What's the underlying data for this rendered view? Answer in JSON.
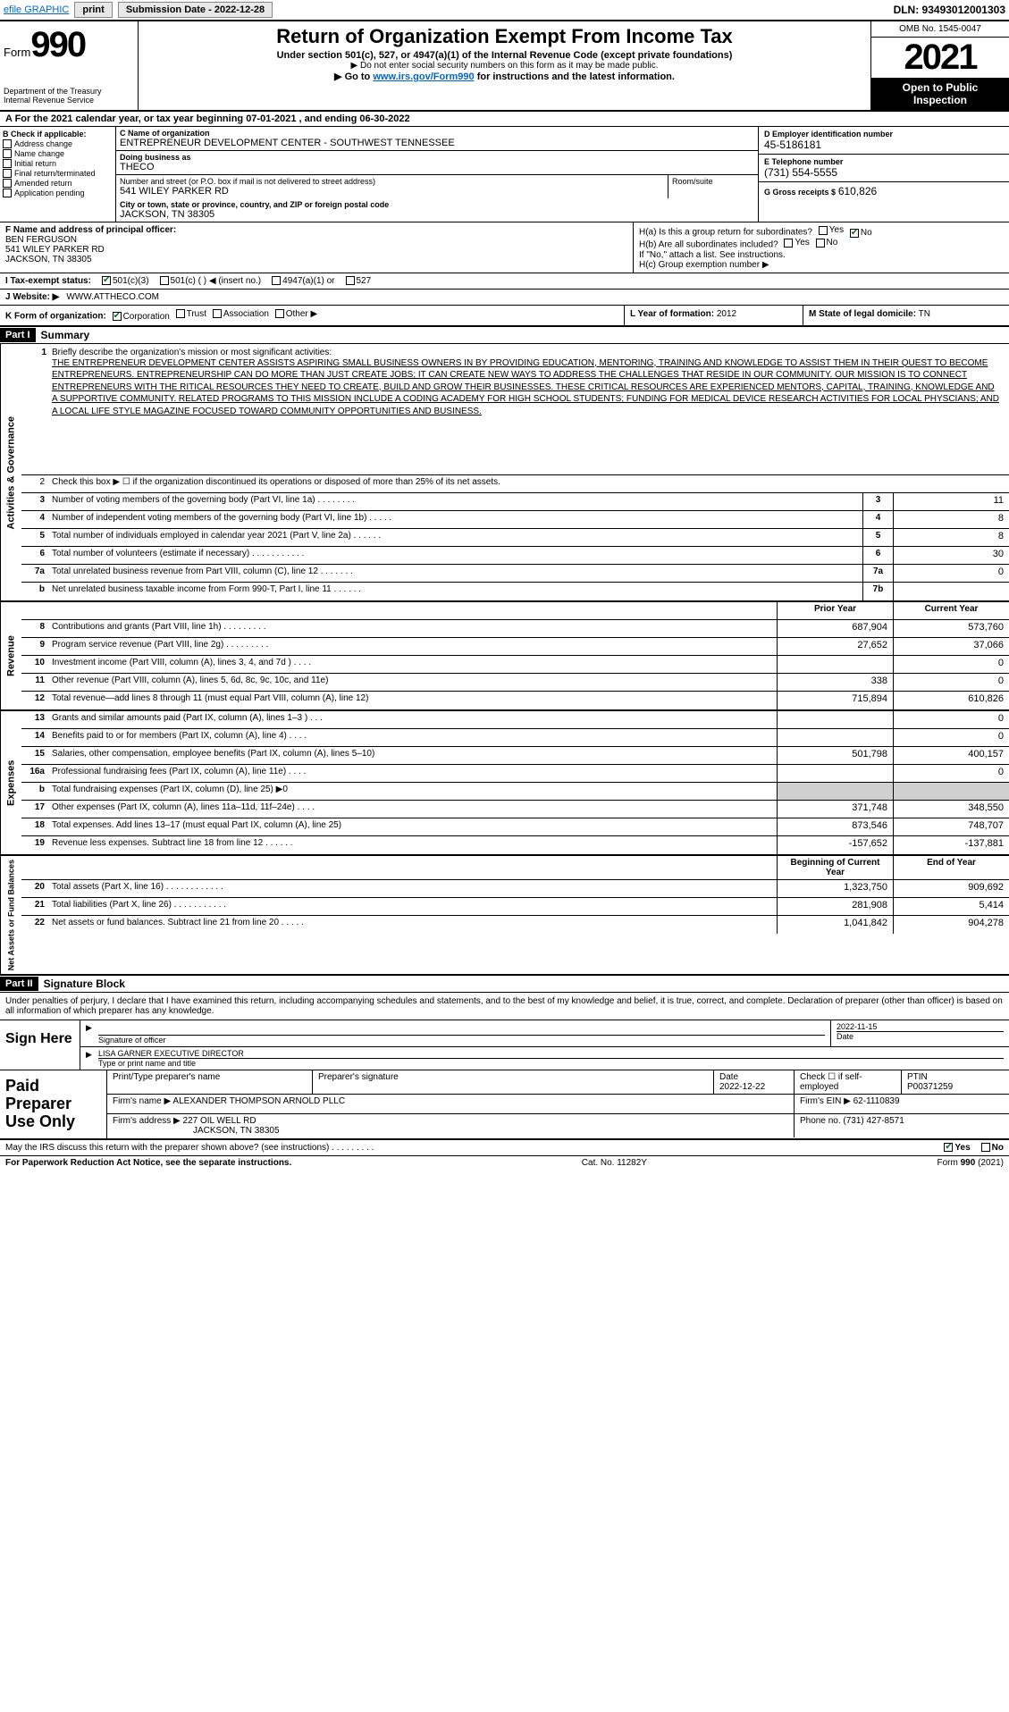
{
  "topbar": {
    "efile": "efile GRAPHIC",
    "print": "print",
    "submission_label": "Submission Date - 2022-12-28",
    "dln": "DLN: 93493012001303"
  },
  "header": {
    "form_word": "Form",
    "form_num": "990",
    "dept": "Department of the Treasury",
    "irs": "Internal Revenue Service",
    "title": "Return of Organization Exempt From Income Tax",
    "sub1": "Under section 501(c), 527, or 4947(a)(1) of the Internal Revenue Code (except private foundations)",
    "sub2": "▶ Do not enter social security numbers on this form as it may be made public.",
    "sub3_pre": "▶ Go to ",
    "sub3_link": "www.irs.gov/Form990",
    "sub3_post": " for instructions and the latest information.",
    "omb": "OMB No. 1545-0047",
    "year": "2021",
    "open": "Open to Public Inspection"
  },
  "line_a": "A For the 2021 calendar year, or tax year beginning 07-01-2021   , and ending 06-30-2022",
  "box_b": {
    "title": "B Check if applicable:",
    "items": [
      "Address change",
      "Name change",
      "Initial return",
      "Final return/terminated",
      "Amended return",
      "Application pending"
    ]
  },
  "box_c": {
    "name_lbl": "C Name of organization",
    "name": "ENTREPRENEUR DEVELOPMENT CENTER - SOUTHWEST TENNESSEE",
    "dba_lbl": "Doing business as",
    "dba": "THECO",
    "addr_lbl": "Number and street (or P.O. box if mail is not delivered to street address)",
    "addr": "541 WILEY PARKER RD",
    "room_lbl": "Room/suite",
    "city_lbl": "City or town, state or province, country, and ZIP or foreign postal code",
    "city": "JACKSON, TN  38305"
  },
  "box_d": {
    "lbl": "D Employer identification number",
    "val": "45-5186181"
  },
  "box_e": {
    "lbl": "E Telephone number",
    "val": "(731) 554-5555"
  },
  "box_g": {
    "lbl": "G Gross receipts $",
    "val": "610,826"
  },
  "box_f": {
    "lbl": "F  Name and address of principal officer:",
    "name": "BEN FERGUSON",
    "addr1": "541 WILEY PARKER RD",
    "addr2": "JACKSON, TN  38305"
  },
  "box_h": {
    "a": "H(a)  Is this a group return for subordinates?",
    "b": "H(b)  Are all subordinates included?",
    "b2": "If \"No,\" attach a list. See instructions.",
    "c": "H(c)  Group exemption number ▶",
    "yes": "Yes",
    "no": "No"
  },
  "row_i": {
    "lbl": "I   Tax-exempt status:",
    "o1": "501(c)(3)",
    "o2": "501(c) (  ) ◀ (insert no.)",
    "o3": "4947(a)(1) or",
    "o4": "527"
  },
  "row_j": {
    "lbl": "J   Website: ▶",
    "val": "WWW.ATTHECO.COM"
  },
  "row_k": {
    "lbl": "K Form of organization:",
    "o1": "Corporation",
    "o2": "Trust",
    "o3": "Association",
    "o4": "Other ▶",
    "l_lbl": "L Year of formation:",
    "l_val": "2012",
    "m_lbl": "M State of legal domicile:",
    "m_val": "TN"
  },
  "part1": {
    "tag": "Part I",
    "title": "Summary"
  },
  "mission": {
    "num": "1",
    "lead": "Briefly describe the organization's mission or most significant activities:",
    "text": "THE ENTREPRENEUR DEVELOPMENT CENTER ASSISTS ASPIRING SMALL BUSINESS OWNERS IN BY PROVIDING EDUCATION, MENTORING, TRAINING AND KNOWLEDGE TO ASSIST THEM IN THEIR QUEST TO BECOME ENTREPRENEURS. ENTREPRENEURSHIP CAN DO MORE THAN JUST CREATE JOBS; IT CAN CREATE NEW WAYS TO ADDRESS THE CHALLENGES THAT RESIDE IN OUR COMMUNITY. OUR MISSION IS TO CONNECT ENTREPRENEURS WITH THE RITICAL RESOURCES THEY NEED TO CREATE, BUILD AND GROW THEIR BUSINESSES. THESE CRITICAL RESOURCES ARE EXPERIENCED MENTORS, CAPITAL, TRAINING, KNOWLEDGE AND A SUPPORTIVE COMMUNITY. RELATED PROGRAMS TO THIS MISSION INCLUDE A CODING ACADEMY FOR HIGH SCHOOL STUDENTS; FUNDING FOR MEDICAL DEVICE RESEARCH ACTIVITIES FOR LOCAL PHYSCIANS; AND A LOCAL LIFE STYLE MAGAZINE FOCUSED TOWARD COMMUNITY OPPORTUNITIES AND BUSINESS."
  },
  "side_labels": {
    "ag": "Activities & Governance",
    "rev": "Revenue",
    "exp": "Expenses",
    "na": "Net Assets or Fund Balances"
  },
  "ag_rows": [
    {
      "n": "2",
      "d": "Check this box ▶ ☐ if the organization discontinued its operations or disposed of more than 25% of its net assets."
    },
    {
      "n": "3",
      "d": "Number of voting members of the governing body (Part VI, line 1a)   .    .    .    .    .    .    .    .",
      "box": "3",
      "v": "11"
    },
    {
      "n": "4",
      "d": "Number of independent voting members of the governing body (Part VI, line 1b)   .    .    .    .    .",
      "box": "4",
      "v": "8"
    },
    {
      "n": "5",
      "d": "Total number of individuals employed in calendar year 2021 (Part V, line 2a)   .    .    .    .    .    .",
      "box": "5",
      "v": "8"
    },
    {
      "n": "6",
      "d": "Total number of volunteers (estimate if necessary)   .    .    .    .    .    .    .    .    .    .    .",
      "box": "6",
      "v": "30"
    },
    {
      "n": "7a",
      "d": "Total unrelated business revenue from Part VIII, column (C), line 12   .    .    .    .    .    .    .",
      "box": "7a",
      "v": "0"
    },
    {
      "n": "b",
      "d": "Net unrelated business taxable income from Form 990-T, Part I, line 11   .    .    .    .    .    .",
      "box": "7b",
      "v": ""
    }
  ],
  "col_hdr": {
    "prior": "Prior Year",
    "current": "Current Year"
  },
  "rev_rows": [
    {
      "n": "8",
      "d": "Contributions and grants (Part VIII, line 1h)   .    .    .    .    .    .    .    .    .",
      "p": "687,904",
      "c": "573,760"
    },
    {
      "n": "9",
      "d": "Program service revenue (Part VIII, line 2g)   .    .    .    .    .    .    .    .    .",
      "p": "27,652",
      "c": "37,066"
    },
    {
      "n": "10",
      "d": "Investment income (Part VIII, column (A), lines 3, 4, and 7d )   .    .    .    .",
      "p": "",
      "c": "0"
    },
    {
      "n": "11",
      "d": "Other revenue (Part VIII, column (A), lines 5, 6d, 8c, 9c, 10c, and 11e)",
      "p": "338",
      "c": "0"
    },
    {
      "n": "12",
      "d": "Total revenue—add lines 8 through 11 (must equal Part VIII, column (A), line 12)",
      "p": "715,894",
      "c": "610,826"
    }
  ],
  "exp_rows": [
    {
      "n": "13",
      "d": "Grants and similar amounts paid (Part IX, column (A), lines 1–3 )   .    .    .",
      "p": "",
      "c": "0"
    },
    {
      "n": "14",
      "d": "Benefits paid to or for members (Part IX, column (A), line 4)   .    .    .    .",
      "p": "",
      "c": "0"
    },
    {
      "n": "15",
      "d": "Salaries, other compensation, employee benefits (Part IX, column (A), lines 5–10)",
      "p": "501,798",
      "c": "400,157"
    },
    {
      "n": "16a",
      "d": "Professional fundraising fees (Part IX, column (A), line 11e)   .    .    .    .",
      "p": "",
      "c": "0"
    },
    {
      "n": "b",
      "d": "Total fundraising expenses (Part IX, column (D), line 25) ▶0",
      "p": "grey",
      "c": "grey"
    },
    {
      "n": "17",
      "d": "Other expenses (Part IX, column (A), lines 11a–11d, 11f–24e)   .    .    .    .",
      "p": "371,748",
      "c": "348,550"
    },
    {
      "n": "18",
      "d": "Total expenses. Add lines 13–17 (must equal Part IX, column (A), line 25)",
      "p": "873,546",
      "c": "748,707"
    },
    {
      "n": "19",
      "d": "Revenue less expenses. Subtract line 18 from line 12   .    .    .    .    .    .",
      "p": "-157,652",
      "c": "-137,881"
    }
  ],
  "na_hdr": {
    "begin": "Beginning of Current Year",
    "end": "End of Year"
  },
  "na_rows": [
    {
      "n": "20",
      "d": "Total assets (Part X, line 16)   .    .    .    .    .    .    .    .    .    .    .    .",
      "p": "1,323,750",
      "c": "909,692"
    },
    {
      "n": "21",
      "d": "Total liabilities (Part X, line 26)   .    .    .    .    .    .    .    .    .    .    .",
      "p": "281,908",
      "c": "5,414"
    },
    {
      "n": "22",
      "d": "Net assets or fund balances. Subtract line 21 from line 20   .    .    .    .    .",
      "p": "1,041,842",
      "c": "904,278"
    }
  ],
  "part2": {
    "tag": "Part II",
    "title": "Signature Block"
  },
  "sig": {
    "intro": "Under penalties of perjury, I declare that I have examined this return, including accompanying schedules and statements, and to the best of my knowledge and belief, it is true, correct, and complete. Declaration of preparer (other than officer) is based on all information of which preparer has any knowledge.",
    "here": "Sign Here",
    "sig_officer": "Signature of officer",
    "date_lbl": "Date",
    "date": "2022-11-15",
    "name": "LISA GARNER  EXECUTIVE DIRECTOR",
    "name_lbl": "Type or print name and title"
  },
  "prep": {
    "label": "Paid Preparer Use Only",
    "h1": "Print/Type preparer's name",
    "h2": "Preparer's signature",
    "h3": "Date",
    "h3v": "2022-12-22",
    "h4": "Check ☐ if self-employed",
    "h5": "PTIN",
    "h5v": "P00371259",
    "firm_lbl": "Firm's name    ▶",
    "firm": "ALEXANDER THOMPSON ARNOLD PLLC",
    "ein_lbl": "Firm's EIN ▶",
    "ein": "62-1110839",
    "addr_lbl": "Firm's address ▶",
    "addr1": "227 OIL WELL RD",
    "addr2": "JACKSON, TN  38305",
    "phone_lbl": "Phone no.",
    "phone": "(731) 427-8571"
  },
  "footer": {
    "discuss": "May the IRS discuss this return with the preparer shown above? (see instructions)   .    .    .    .    .    .    .    .    .",
    "yes": "Yes",
    "no": "No",
    "pra": "For Paperwork Reduction Act Notice, see the separate instructions.",
    "cat": "Cat. No. 11282Y",
    "form": "Form 990 (2021)"
  },
  "colors": {
    "link": "#0066cc",
    "check": "#0a6b2e",
    "grey": "#d0d0d0"
  }
}
